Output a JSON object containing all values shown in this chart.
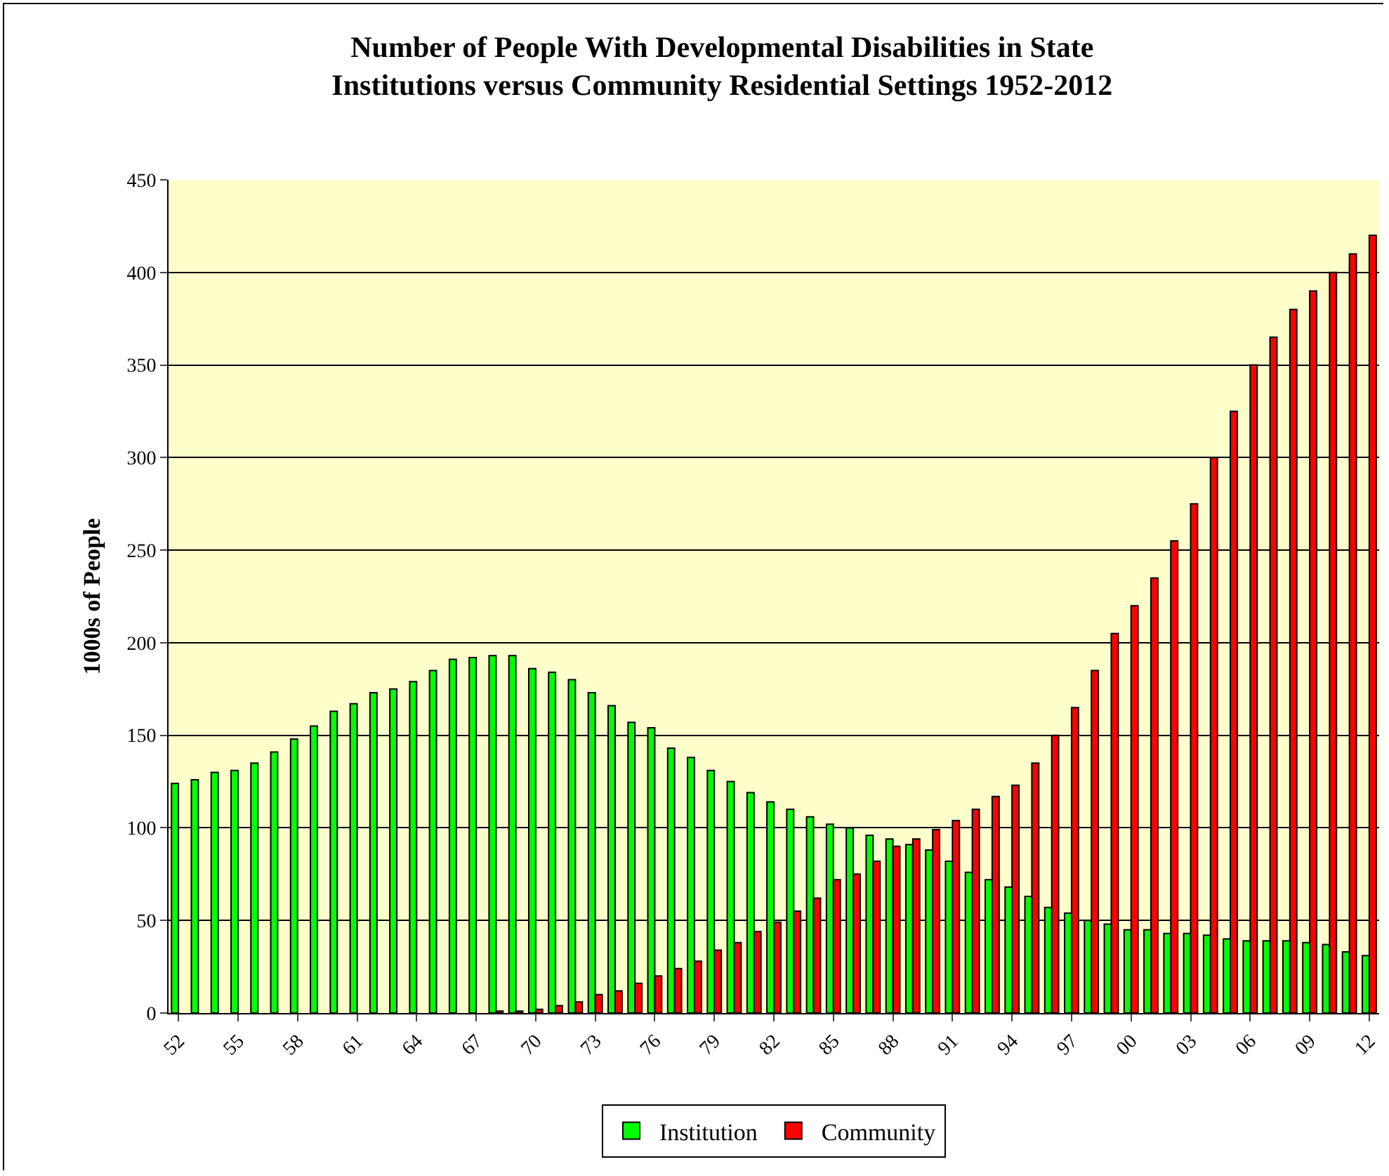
{
  "chart_data": {
    "type": "bar",
    "title": "Number of People With Developmental Disabilities in State\nInstitutions versus Community Residential Settings 1952-2012",
    "ylabel": "1000s of People",
    "categories": [
      "52",
      null,
      null,
      "55",
      null,
      null,
      "58",
      null,
      null,
      "61",
      null,
      null,
      "64",
      null,
      null,
      "67",
      null,
      null,
      "70",
      null,
      null,
      "73",
      null,
      null,
      "76",
      null,
      null,
      "79",
      null,
      null,
      "82",
      null,
      null,
      "85",
      null,
      null,
      "88",
      null,
      null,
      "91",
      null,
      null,
      "94",
      null,
      null,
      "97",
      null,
      null,
      "00",
      null,
      null,
      "03",
      null,
      null,
      "06",
      null,
      null,
      "09",
      null,
      null,
      "12"
    ],
    "series": [
      {
        "name": "Institution",
        "color": "#00ff00",
        "values": [
          124,
          126,
          130,
          131,
          135,
          141,
          148,
          155,
          163,
          167,
          173,
          175,
          179,
          185,
          191,
          192,
          193,
          193,
          186,
          184,
          180,
          173,
          166,
          157,
          154,
          143,
          138,
          131,
          125,
          119,
          114,
          110,
          106,
          102,
          100,
          96,
          94,
          91,
          88,
          82,
          76,
          72,
          68,
          63,
          57,
          54,
          50,
          48,
          45,
          45,
          43,
          43,
          42,
          40,
          39,
          39,
          39,
          38,
          37,
          33,
          31
        ]
      },
      {
        "name": "Community",
        "color": "#ff0000",
        "values": [
          null,
          null,
          null,
          null,
          null,
          null,
          null,
          null,
          null,
          null,
          null,
          null,
          null,
          null,
          null,
          null,
          1,
          1,
          2,
          4,
          6,
          10,
          12,
          16,
          20,
          24,
          28,
          34,
          38,
          44,
          49,
          55,
          62,
          72,
          75,
          82,
          90,
          94,
          99,
          104,
          110,
          117,
          123,
          135,
          150,
          165,
          185,
          205,
          220,
          235,
          255,
          275,
          300,
          325,
          350,
          365,
          380,
          390,
          400,
          410,
          420
        ]
      }
    ],
    "ylim": [
      0,
      450
    ],
    "yticks": [
      0,
      50,
      100,
      150,
      200,
      250,
      300,
      350,
      400,
      450
    ],
    "grid": "y",
    "legend": "bottom"
  }
}
